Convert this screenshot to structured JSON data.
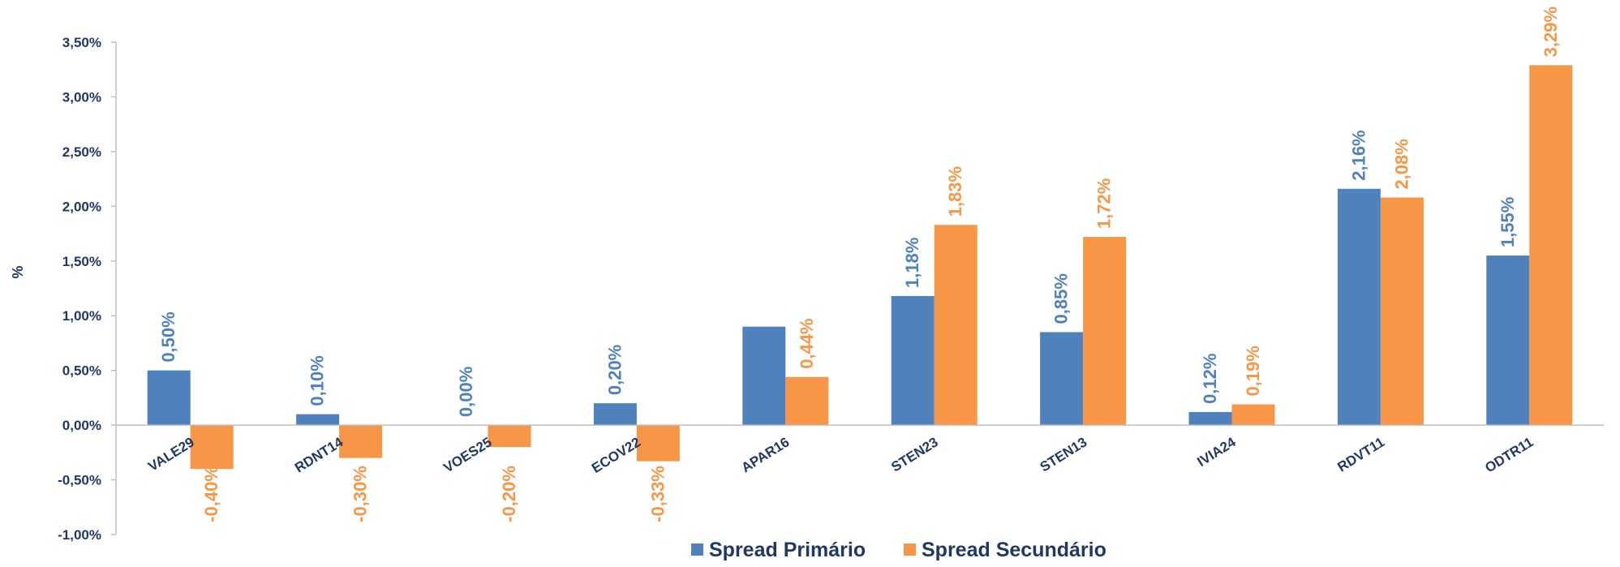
{
  "chart_data": {
    "type": "bar",
    "ylabel": "%",
    "xlabel": "",
    "title": "",
    "ylim": [
      -1.0,
      3.5
    ],
    "ytick_values": [
      -1.0,
      -0.5,
      0.0,
      0.5,
      1.0,
      1.5,
      2.0,
      2.5,
      3.0,
      3.5
    ],
    "ytick_labels": [
      "-1,00%",
      "-0,50%",
      "0,00%",
      "0,50%",
      "1,00%",
      "1,50%",
      "2,00%",
      "2,50%",
      "3,00%",
      "3,50%"
    ],
    "categories": [
      "VALE29",
      "RDNT14",
      "VOES25",
      "ECOV22",
      "APAR16",
      "STEN23",
      "STEN13",
      "IVIA24",
      "RDVT11",
      "ODTR11"
    ],
    "series": [
      {
        "name": "Spread Primário",
        "color": "#4f81bd",
        "values": [
          0.5,
          0.1,
          0.0,
          0.2,
          0.9,
          1.18,
          0.85,
          0.12,
          2.16,
          1.55
        ],
        "labels": [
          "0,50%",
          "0,10%",
          "0,00%",
          "0,20%",
          "",
          "1,18%",
          "0,85%",
          "0,12%",
          "2,16%",
          "1,55%"
        ]
      },
      {
        "name": "Spread Secundário",
        "color": "#f79646",
        "values": [
          -0.4,
          -0.3,
          -0.2,
          -0.33,
          0.44,
          1.83,
          1.72,
          0.19,
          2.08,
          3.29
        ],
        "labels": [
          "-0,40%",
          "-0,30%",
          "-0,20%",
          "-0,33%",
          "0,44%",
          "1,83%",
          "1,72%",
          "0,19%",
          "2,08%",
          "3,29%"
        ]
      }
    ],
    "grid": false,
    "legend_position": "bottom"
  }
}
